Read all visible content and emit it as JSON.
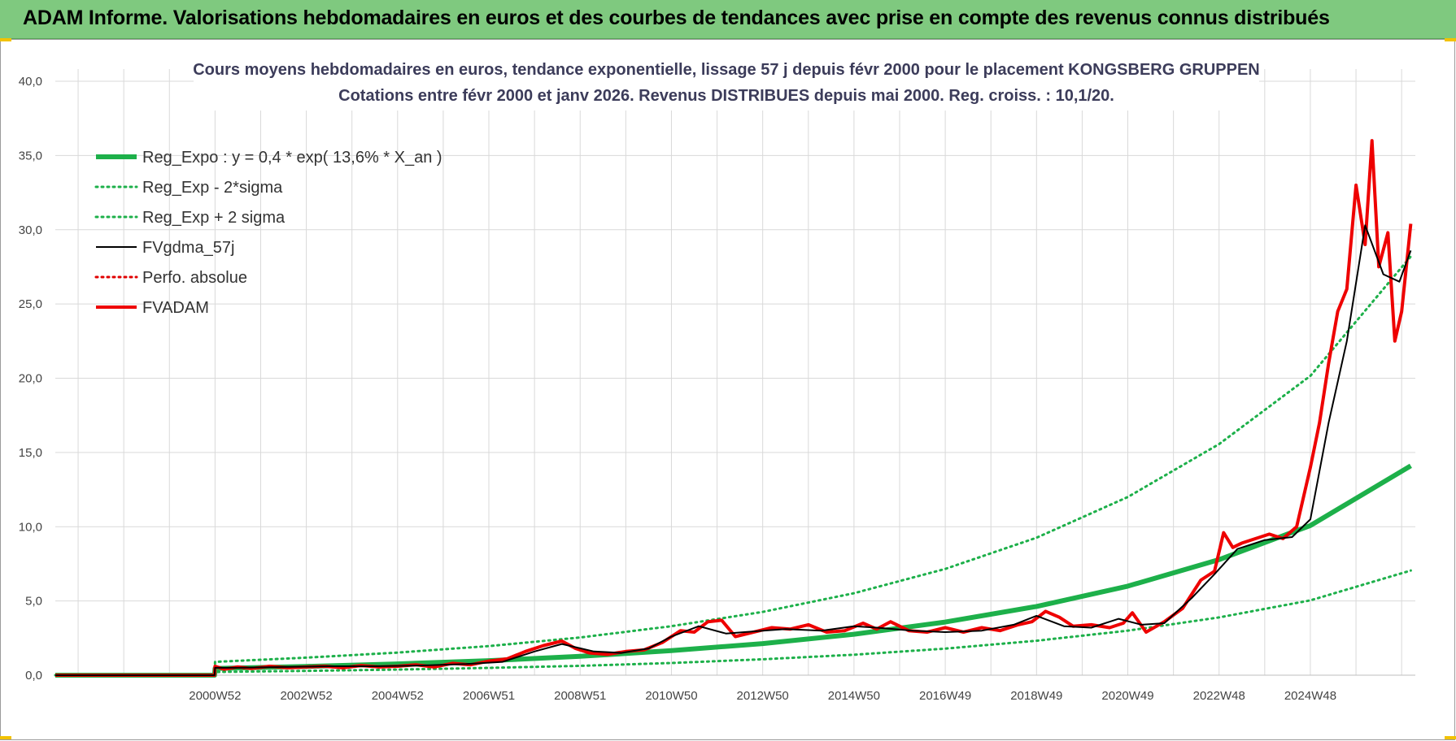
{
  "banner": {
    "title": "ADAM Informe. Valorisations hebdomadaires en euros et des courbes de tendances avec prise en compte des revenus connus distribués"
  },
  "colors": {
    "banner": "#7fc97f",
    "trend": "#1db04a",
    "band": "#1db04a",
    "smooth": "#000000",
    "perf": "#e00000",
    "fvadam": "#ee0000",
    "grid": "#d9d9d9"
  },
  "chart_data": {
    "type": "line",
    "title": "Cours moyens hebdomadaires en euros, tendance exponentielle, lissage 57 j depuis févr 2000 pour le placement KONGSBERG GRUPPEN",
    "subtitle": "Cotations entre févr 2000 et janv 2026. Revenus DISTRIBUES depuis mai 2000. Reg. croiss. : 10,1/20.",
    "xlabel": "",
    "ylabel": "",
    "ylim": [
      0,
      40
    ],
    "xlim": [
      1996.5,
      2026.3
    ],
    "yticks": [
      "0,0",
      "5,0",
      "10,0",
      "15,0",
      "20,0",
      "25,0",
      "30,0",
      "35,0",
      "40,0"
    ],
    "xticks": [
      {
        "x": 2000.0,
        "label": "2000W52"
      },
      {
        "x": 2002.0,
        "label": "2002W52"
      },
      {
        "x": 2004.0,
        "label": "2004W52"
      },
      {
        "x": 2006.0,
        "label": "2006W51"
      },
      {
        "x": 2008.0,
        "label": "2008W51"
      },
      {
        "x": 2010.0,
        "label": "2010W50"
      },
      {
        "x": 2012.0,
        "label": "2012W50"
      },
      {
        "x": 2014.0,
        "label": "2014W50"
      },
      {
        "x": 2016.0,
        "label": "2016W49"
      },
      {
        "x": 2018.0,
        "label": "2018W49"
      },
      {
        "x": 2020.0,
        "label": "2020W49"
      },
      {
        "x": 2022.0,
        "label": "2022W48"
      },
      {
        "x": 2024.0,
        "label": "2024W48"
      }
    ],
    "grid": true,
    "legend_position": "top-left",
    "series": [
      {
        "name": "Reg_Expo : y = 0,4 * exp( 13,6% *  X_an )",
        "style": "thick-solid",
        "color": "#1db04a",
        "x": [
          1996.5,
          1999.99,
          2000.0,
          2002,
          2004,
          2006,
          2008,
          2010,
          2012,
          2014,
          2016,
          2018,
          2020,
          2022,
          2024,
          2026.2
        ],
        "y": [
          0,
          0,
          0.45,
          0.59,
          0.76,
          0.98,
          1.27,
          1.65,
          2.13,
          2.76,
          3.58,
          4.63,
          6.0,
          7.78,
          10.08,
          14.1
        ]
      },
      {
        "name": "Reg_Exp - 2*sigma",
        "style": "dotted",
        "color": "#1db04a",
        "x": [
          1996.5,
          1999.99,
          2000.0,
          2002,
          2004,
          2006,
          2008,
          2010,
          2012,
          2014,
          2016,
          2018,
          2020,
          2022,
          2024,
          2026.2
        ],
        "y": [
          0,
          0,
          0.22,
          0.29,
          0.38,
          0.49,
          0.63,
          0.82,
          1.07,
          1.38,
          1.79,
          2.32,
          3.0,
          3.89,
          5.04,
          7.05
        ]
      },
      {
        "name": "Reg_Exp + 2 sigma",
        "style": "dotted",
        "color": "#1db04a",
        "x": [
          1996.5,
          1999.99,
          2000.0,
          2002,
          2004,
          2006,
          2008,
          2010,
          2012,
          2014,
          2016,
          2018,
          2020,
          2022,
          2024,
          2026.2
        ],
        "y": [
          0,
          0,
          0.9,
          1.18,
          1.52,
          1.96,
          2.54,
          3.3,
          4.26,
          5.52,
          7.16,
          9.26,
          12.0,
          15.56,
          20.16,
          28.2
        ]
      },
      {
        "name": "FVgdma_57j",
        "style": "solid",
        "color": "#000000",
        "x": [
          1996.5,
          1999.99,
          2000.0,
          2000.5,
          2001.5,
          2002.5,
          2003.5,
          2004.5,
          2005.5,
          2006.3,
          2007.0,
          2007.6,
          2008.3,
          2008.9,
          2009.5,
          2010.0,
          2010.6,
          2011.2,
          2012.0,
          2012.5,
          2013.3,
          2014.0,
          2014.5,
          2015.3,
          2016.0,
          2016.8,
          2017.5,
          2018.0,
          2018.6,
          2019.2,
          2019.8,
          2020.3,
          2020.8,
          2021.4,
          2021.9,
          2022.4,
          2023.0,
          2023.6,
          2024.0,
          2024.4,
          2024.8,
          2025.2,
          2025.6,
          2025.95,
          2026.2
        ],
        "y": [
          0,
          0,
          0.5,
          0.5,
          0.55,
          0.6,
          0.6,
          0.65,
          0.75,
          0.9,
          1.6,
          2.1,
          1.6,
          1.5,
          1.8,
          2.6,
          3.3,
          2.8,
          3.0,
          3.1,
          3.0,
          3.3,
          3.2,
          3.0,
          2.9,
          3.0,
          3.4,
          4.0,
          3.3,
          3.2,
          3.8,
          3.4,
          3.5,
          5.2,
          6.8,
          8.5,
          9.1,
          9.3,
          10.5,
          17.0,
          22.5,
          30.3,
          27.0,
          26.5,
          28.6
        ]
      },
      {
        "name": "Perfo. absolue",
        "style": "dotted",
        "color": "#e00000",
        "x": [],
        "y": []
      },
      {
        "name": "FVADAM",
        "style": "thick-solid",
        "color": "#ee0000",
        "x": [
          1996.5,
          1999.99,
          2000.0,
          2000.2,
          2000.5,
          2000.8,
          2001.2,
          2001.6,
          2002.0,
          2002.4,
          2002.8,
          2003.2,
          2003.6,
          2004.0,
          2004.4,
          2004.8,
          2005.2,
          2005.6,
          2006.0,
          2006.4,
          2006.8,
          2007.2,
          2007.6,
          2007.9,
          2008.2,
          2008.6,
          2009.0,
          2009.4,
          2009.8,
          2010.2,
          2010.5,
          2010.8,
          2011.1,
          2011.4,
          2011.8,
          2012.2,
          2012.6,
          2013.0,
          2013.4,
          2013.8,
          2014.2,
          2014.5,
          2014.8,
          2015.2,
          2015.6,
          2016.0,
          2016.4,
          2016.8,
          2017.2,
          2017.6,
          2017.9,
          2018.2,
          2018.5,
          2018.8,
          2019.2,
          2019.6,
          2019.9,
          2020.1,
          2020.4,
          2020.8,
          2021.2,
          2021.6,
          2021.9,
          2022.1,
          2022.3,
          2022.5,
          2022.8,
          2023.1,
          2023.4,
          2023.7,
          2024.0,
          2024.2,
          2024.4,
          2024.6,
          2024.8,
          2025.0,
          2025.2,
          2025.35,
          2025.5,
          2025.7,
          2025.85,
          2026.0,
          2026.2
        ],
        "y": [
          0,
          0,
          0.6,
          0.4,
          0.55,
          0.45,
          0.6,
          0.5,
          0.55,
          0.6,
          0.5,
          0.65,
          0.55,
          0.6,
          0.7,
          0.55,
          0.8,
          0.7,
          0.95,
          1.1,
          1.6,
          2.0,
          2.3,
          1.8,
          1.5,
          1.4,
          1.6,
          1.7,
          2.2,
          3.0,
          2.9,
          3.6,
          3.7,
          2.6,
          2.9,
          3.2,
          3.1,
          3.4,
          2.9,
          3.0,
          3.5,
          3.1,
          3.6,
          3.0,
          2.9,
          3.2,
          2.9,
          3.2,
          3.0,
          3.4,
          3.6,
          4.3,
          3.9,
          3.3,
          3.4,
          3.2,
          3.5,
          4.2,
          2.9,
          3.6,
          4.5,
          6.4,
          7.0,
          9.6,
          8.6,
          8.9,
          9.2,
          9.5,
          9.2,
          10.0,
          14.0,
          17.0,
          21.0,
          24.5,
          26.0,
          33.0,
          29.0,
          36.0,
          27.5,
          29.8,
          22.5,
          24.5,
          30.4
        ]
      }
    ]
  }
}
